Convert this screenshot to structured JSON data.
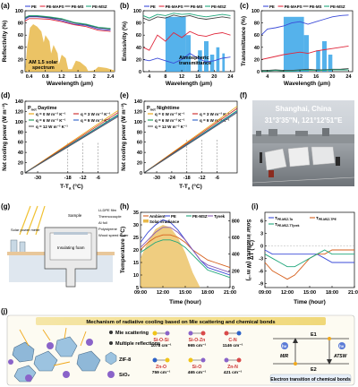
{
  "figure": {
    "panels": {
      "a": {
        "letter": "(a)",
        "legend": [
          "PE",
          "PE-MAPS",
          "PE-MS",
          "PE-MSZ"
        ],
        "xlabel": "Wavelength (μm)",
        "ylabel": "Reflectivity (%)",
        "annotation": [
          "AM 1.5 solar",
          "spectrum"
        ]
      },
      "b": {
        "letter": "(b)",
        "legend": [
          "PE",
          "PE-MAPS",
          "PE-MS",
          "PE-MSZ"
        ],
        "xlabel": "Wavelength (μm)",
        "ylabel": "Emissivity (%)",
        "annotation": [
          "Atmospheric",
          "transmittance"
        ]
      },
      "c": {
        "letter": "(c)",
        "legend": [
          "PE",
          "PE-MAPS",
          "PE-MS",
          "PE-MSZ"
        ],
        "xlabel": "Wavelength (μm)",
        "ylabel": "Transmittance (%)"
      },
      "d": {
        "letter": "(d)",
        "title": "P",
        "title_sub": "net",
        "title_rest": " Daytime",
        "xlabel": "T-T",
        "xlabel_sub": "a",
        "xlabel_unit": " (°C)",
        "ylabel": "Net cooling power (W m⁻²)",
        "legend": [
          "q = 0 W m⁻² K⁻¹",
          "q = 3 W m⁻² K⁻¹",
          "q = 6 W m⁻² K⁻¹",
          "q = 9 W m⁻² K⁻¹",
          "q = 12 W m⁻² K⁻¹"
        ]
      },
      "e": {
        "letter": "(e)",
        "title": "P",
        "title_sub": "net",
        "title_rest": " Nighttime",
        "xlabel": "T-T",
        "xlabel_sub": "a",
        "xlabel_unit": " (°C)",
        "ylabel": "Net cooling power (W m⁻²)",
        "legend": [
          "q = 0 W m⁻² K⁻¹",
          "q = 3 W m⁻² K⁻¹",
          "q = 6 W m⁻² K⁻¹",
          "q = 9 W m⁻² K⁻¹",
          "q = 12 W m⁻² K⁻¹"
        ]
      },
      "f": {
        "letter": "(f)",
        "location": "Shanghai, China",
        "coords": "31°3′35″N, 121°12′51″E"
      },
      "g": {
        "letter": "(g)",
        "labels": [
          "Solar power meter",
          "Sample",
          "LLDPE film",
          "Thermocouple",
          "Al foil",
          "Polystyrene",
          "Wood speed stater",
          "Insulating foam"
        ]
      },
      "h": {
        "letter": "(h)",
        "legend": [
          "Ambient",
          "PE",
          "PE-MSZ",
          "Tyvek",
          "Solar irradiance"
        ],
        "xlabel": "Time (hour)",
        "ylabel": "Temperature (°C)",
        "y2label": "Solar irradiance (W m⁻²)"
      },
      "i": {
        "letter": "(i)",
        "legend": [
          "T",
          "T",
          "T"
        ],
        "legend_sub": [
          "PE-MSZ-T",
          "PE-MSZ-T",
          "PE-MSZ-T"
        ],
        "legend_sub2": [
          "a",
          "PE",
          "Tyvek"
        ],
        "xlabel": "Time (hour)",
        "ylabel": "ΔT (°C)"
      },
      "j": {
        "letter": "(j)",
        "banner": "Mechanism of radiative cooling based on Mie scattering and chemical bonds",
        "bullets": [
          "Mie scattering",
          "Multiple reflections"
        ],
        "particles": [
          "ZIF-8",
          "SiO₂"
        ],
        "bonds": [
          {
            "bond": "Si-O-Si",
            "wn": "1078 cm⁻¹"
          },
          {
            "bond": "Si-O-Zn",
            "wn": "965 cm⁻¹"
          },
          {
            "bond": "C-N",
            "wn": "1146 cm⁻¹"
          },
          {
            "bond": "Zn-O",
            "wn": "759 cm⁻¹"
          },
          {
            "bond": "Si-O",
            "wn": "465 cm⁻¹"
          },
          {
            "bond": "Zn-N",
            "wn": "421 cm⁻¹"
          }
        ],
        "energy": {
          "e1": "E1",
          "e2": "E2",
          "hv": "hv",
          "mir": "MIR",
          "atsw": "ATSW",
          "caption": "Electron transition of chemical bonds"
        }
      }
    }
  },
  "chart_data": [
    {
      "panel": "a",
      "type": "line",
      "xlabel": "Wavelength (μm)",
      "ylabel": "Reflectivity (%)",
      "xlim": [
        0.3,
        2.5
      ],
      "ylim": [
        0,
        100
      ],
      "xticks": [
        0.4,
        0.8,
        1.2,
        1.6,
        2.0,
        2.4
      ],
      "yticks": [
        0,
        20,
        40,
        60,
        80,
        100
      ],
      "series": [
        {
          "name": "PE",
          "x": [
            0.3,
            0.4,
            0.6,
            0.9,
            1.2,
            1.5,
            1.8,
            2.1,
            2.4
          ],
          "values": [
            86,
            90,
            90,
            88,
            84,
            78,
            76,
            70,
            68
          ]
        },
        {
          "name": "PE-MAPS",
          "x": [
            0.3,
            0.4,
            0.6,
            0.9,
            1.2,
            1.5,
            1.8,
            2.1,
            2.4
          ],
          "values": [
            83,
            87,
            87,
            86,
            82,
            77,
            74,
            68,
            66
          ]
        },
        {
          "name": "PE-MS",
          "x": [
            0.3,
            0.4,
            0.6,
            0.9,
            1.2,
            1.5,
            1.8,
            2.1,
            2.4
          ],
          "values": [
            88,
            91,
            91,
            89,
            86,
            80,
            77,
            72,
            70
          ]
        },
        {
          "name": "PE-MSZ",
          "x": [
            0.3,
            0.4,
            0.6,
            0.9,
            1.2,
            1.5,
            1.8,
            2.1,
            2.4
          ],
          "values": [
            89,
            92,
            92,
            90,
            87,
            81,
            78,
            73,
            71
          ]
        }
      ]
    },
    {
      "panel": "b",
      "type": "line",
      "xlabel": "Wavelength (μm)",
      "ylabel": "Emissivity (%)",
      "xlim": [
        2.5,
        25
      ],
      "ylim": [
        0,
        100
      ],
      "xticks": [
        4,
        8,
        12,
        16,
        20,
        24
      ],
      "yticks": [
        0,
        20,
        40,
        60,
        80,
        100
      ],
      "series": [
        {
          "name": "PE",
          "x": [
            2.5,
            4,
            6,
            8,
            10,
            12,
            14,
            16,
            18,
            20,
            22,
            24
          ],
          "values": [
            20,
            18,
            22,
            18,
            14,
            20,
            30,
            22,
            16,
            18,
            22,
            24
          ]
        },
        {
          "name": "PE-MAPS",
          "x": [
            2.5,
            4,
            6,
            8,
            10,
            12,
            14,
            16,
            18,
            20,
            22,
            24
          ],
          "values": [
            40,
            35,
            60,
            50,
            64,
            56,
            66,
            60,
            58,
            62,
            64,
            60
          ]
        },
        {
          "name": "PE-MS",
          "x": [
            2.5,
            4,
            6,
            8,
            10,
            12,
            14,
            16,
            18,
            20,
            22,
            24
          ],
          "values": [
            88,
            84,
            90,
            88,
            93,
            90,
            92,
            88,
            86,
            88,
            90,
            88
          ]
        },
        {
          "name": "PE-MSZ",
          "x": [
            2.5,
            4,
            6,
            8,
            10,
            12,
            14,
            16,
            18,
            20,
            22,
            24
          ],
          "values": [
            92,
            88,
            94,
            92,
            96,
            94,
            95,
            92,
            90,
            92,
            94,
            92
          ]
        }
      ]
    },
    {
      "panel": "c",
      "type": "line",
      "xlabel": "Wavelength (μm)",
      "ylabel": "Transmittance (%)",
      "xlim": [
        2.5,
        25
      ],
      "ylim": [
        0,
        100
      ],
      "xticks": [
        4,
        8,
        12,
        16,
        20,
        24
      ],
      "yticks": [
        0,
        20,
        40,
        60,
        80,
        100
      ],
      "series": [
        {
          "name": "PE",
          "x": [
            2.5,
            4,
            6,
            8,
            10,
            12,
            14,
            16,
            18,
            20,
            22,
            24
          ],
          "values": [
            60,
            70,
            72,
            75,
            80,
            82,
            78,
            82,
            86,
            90,
            92,
            93
          ]
        },
        {
          "name": "PE-MAPS",
          "x": [
            2.5,
            4,
            6,
            8,
            10,
            12,
            14,
            16,
            18,
            20,
            22,
            24
          ],
          "values": [
            20,
            22,
            25,
            28,
            30,
            32,
            30,
            34,
            36,
            38,
            40,
            42
          ]
        },
        {
          "name": "PE-MS",
          "x": [
            2.5,
            4,
            6,
            8,
            10,
            12,
            14,
            16,
            18,
            20,
            22,
            24
          ],
          "values": [
            2,
            2,
            3,
            2,
            2,
            3,
            4,
            3,
            3,
            4,
            4,
            5
          ]
        },
        {
          "name": "PE-MSZ",
          "x": [
            2.5,
            4,
            6,
            8,
            10,
            12,
            14,
            16,
            18,
            20,
            22,
            24
          ],
          "values": [
            1,
            1,
            2,
            1,
            1,
            2,
            2,
            2,
            2,
            3,
            3,
            3
          ]
        }
      ]
    },
    {
      "panel": "d",
      "type": "line",
      "xlabel": "T-Ta (°C)",
      "ylabel": "Net cooling power (W m⁻²)",
      "xlim": [
        -35,
        2
      ],
      "ylim": [
        0,
        140
      ],
      "xticks": [
        -30,
        -18,
        -12,
        -6
      ],
      "yticks": [
        0,
        20,
        40,
        60,
        80,
        100,
        120,
        140
      ],
      "series": [
        {
          "name": "q = 0 W m⁻² K⁻¹",
          "x": [
            -35,
            2
          ],
          "values": [
            0,
            122
          ]
        },
        {
          "name": "q = 3 W m⁻² K⁻¹",
          "x": [
            -35,
            2
          ],
          "values": [
            0,
            118
          ]
        },
        {
          "name": "q = 6 W m⁻² K⁻¹",
          "x": [
            -35,
            2
          ],
          "values": [
            0,
            114
          ]
        },
        {
          "name": "q = 9 W m⁻² K⁻¹",
          "x": [
            -35,
            2
          ],
          "values": [
            0,
            112
          ]
        },
        {
          "name": "q = 12 W m⁻² K⁻¹",
          "x": [
            -35,
            2
          ],
          "values": [
            0,
            110
          ]
        }
      ]
    },
    {
      "panel": "e",
      "type": "line",
      "xlabel": "T-Ta (°C)",
      "ylabel": "Net cooling power (W m⁻²)",
      "xlim": [
        -35,
        2
      ],
      "ylim": [
        0,
        140
      ],
      "xticks": [
        -30,
        -24,
        -18,
        -12,
        -6
      ],
      "yticks": [
        0,
        20,
        40,
        60,
        80,
        100,
        120,
        140
      ],
      "series": [
        {
          "name": "q = 0 W m⁻² K⁻¹",
          "x": [
            -35,
            2
          ],
          "values": [
            0,
            130
          ]
        },
        {
          "name": "q = 3 W m⁻² K⁻¹",
          "x": [
            -35,
            2
          ],
          "values": [
            0,
            126
          ]
        },
        {
          "name": "q = 6 W m⁻² K⁻¹",
          "x": [
            -35,
            2
          ],
          "values": [
            0,
            122
          ]
        },
        {
          "name": "q = 9 W m⁻² K⁻¹",
          "x": [
            -35,
            2
          ],
          "values": [
            0,
            120
          ]
        },
        {
          "name": "q = 12 W m⁻² K⁻¹",
          "x": [
            -35,
            2
          ],
          "values": [
            0,
            118
          ]
        }
      ]
    },
    {
      "panel": "h",
      "type": "line",
      "xlabel": "Time (hour)",
      "ylabel": "Temperature (°C)",
      "xlim": [
        9,
        21
      ],
      "ylim": [
        5,
        35
      ],
      "xticks": [
        9,
        12,
        15,
        18,
        21
      ],
      "xticklabels": [
        "09:00",
        "12:00",
        "15:00",
        "18:00",
        "21:00"
      ],
      "yticks": [
        5,
        10,
        15,
        20,
        25,
        30,
        35
      ],
      "y2ticks": [
        0,
        200,
        400,
        600,
        800
      ],
      "series": [
        {
          "name": "Ambient",
          "x": [
            9,
            10,
            11,
            12,
            13,
            14,
            15,
            16,
            17,
            18,
            19,
            20,
            21
          ],
          "values": [
            20,
            23,
            25,
            26,
            26,
            25,
            23,
            20,
            18,
            16,
            15,
            14,
            13
          ]
        },
        {
          "name": "PE",
          "x": [
            9,
            10,
            11,
            12,
            13,
            14,
            15,
            16,
            17,
            18,
            19,
            20,
            21
          ],
          "values": [
            23,
            27,
            30,
            32,
            31,
            28,
            24,
            20,
            16,
            13,
            12,
            11,
            10
          ]
        },
        {
          "name": "PE-MSZ",
          "x": [
            9,
            10,
            11,
            12,
            13,
            14,
            15,
            16,
            17,
            18,
            19,
            20,
            21
          ],
          "values": [
            19,
            21,
            23,
            24,
            24,
            23,
            21,
            18,
            15,
            12,
            11,
            10,
            9
          ]
        },
        {
          "name": "Tyvek",
          "x": [
            9,
            10,
            11,
            12,
            13,
            14,
            15,
            16,
            17,
            18,
            19,
            20,
            21
          ],
          "values": [
            21,
            24,
            27,
            29,
            29,
            27,
            24,
            20,
            16,
            14,
            13,
            12,
            11
          ]
        },
        {
          "name": "Solar irradiance",
          "x": [
            9,
            10,
            11,
            12,
            13,
            14,
            15,
            16,
            17
          ],
          "values": [
            350,
            550,
            700,
            750,
            720,
            600,
            420,
            180,
            0
          ]
        }
      ]
    },
    {
      "panel": "i",
      "type": "line",
      "xlabel": "Time (hour)",
      "ylabel": "ΔT (°C)",
      "xlim": [
        9,
        21
      ],
      "ylim": [
        -10,
        8
      ],
      "xticks": [
        9,
        12,
        15,
        18,
        21
      ],
      "xticklabels": [
        "09:00",
        "12:00",
        "15:00",
        "18:00",
        "21:00"
      ],
      "yticks": [
        -9,
        -6,
        -3,
        0,
        3,
        6
      ],
      "series": [
        {
          "name": "T PE-MSZ-T a",
          "x": [
            9,
            10,
            11,
            12,
            13,
            14,
            15,
            16,
            17,
            18,
            19,
            20,
            21
          ],
          "values": [
            -1,
            -2,
            -2,
            -2,
            -2,
            -2,
            -2,
            -2,
            -3,
            -4,
            -4,
            -4,
            -4
          ]
        },
        {
          "name": "T PE-MSZ-T PE",
          "x": [
            9,
            10,
            11,
            12,
            13,
            14,
            15,
            16,
            17,
            18,
            19,
            20,
            21
          ],
          "values": [
            -4,
            -6,
            -7,
            -8,
            -7,
            -5,
            -3,
            -2,
            -2,
            -1,
            -1,
            -1,
            -1
          ]
        },
        {
          "name": "T PE-MSZ-T Tyvek",
          "x": [
            9,
            10,
            11,
            12,
            13,
            14,
            15,
            16,
            17,
            18,
            19,
            20,
            21
          ],
          "values": [
            -2,
            -3,
            -4,
            -5,
            -5,
            -4,
            -3,
            -2,
            -1,
            -2,
            -2,
            -2,
            -2
          ]
        }
      ]
    }
  ],
  "colors": {
    "pe": "#3b4bd8",
    "pe_maps": "#e0283c",
    "pe_ms": "#444444",
    "pe_msz": "#1fa67a",
    "solar": "#e8b84a",
    "window": "#37a5e8",
    "ambient": "#d65f1c",
    "tyvek": "#8a5bb5",
    "q0": "#e8a30a",
    "q3": "#cc2222",
    "q6": "#1a9a52",
    "q9": "#2d62c8",
    "q12": "#555555"
  }
}
